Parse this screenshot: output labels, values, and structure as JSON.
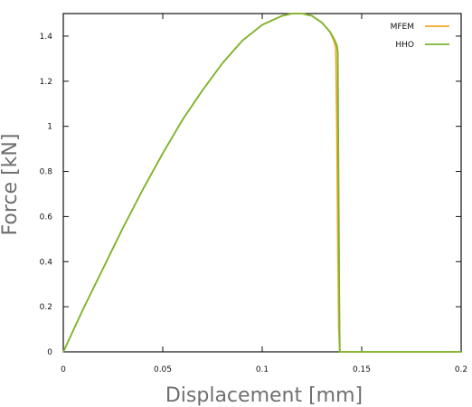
{
  "chart_data": {
    "type": "line",
    "xlabel": "Displacement [mm]",
    "ylabel": "Force [kN]",
    "xlim": [
      0,
      0.2
    ],
    "ylim": [
      0,
      1.5
    ],
    "xticks": [
      0,
      0.05,
      0.1,
      0.15,
      0.2
    ],
    "xtick_labels": [
      "0",
      "0.05",
      "0.1",
      "0.15",
      "0.2"
    ],
    "yticks": [
      0,
      0.2,
      0.4,
      0.6,
      0.8,
      1,
      1.2,
      1.4
    ],
    "ytick_labels": [
      "0",
      "0.2",
      "0.4",
      "0.6",
      "0.8",
      "1",
      "1.2",
      "1.4"
    ],
    "grid": false,
    "legend_position": "top-right",
    "series": [
      {
        "name": "MFEM",
        "color": "#f5a623",
        "x": [
          0,
          0.01,
          0.02,
          0.03,
          0.04,
          0.05,
          0.06,
          0.07,
          0.08,
          0.09,
          0.1,
          0.11,
          0.115,
          0.12,
          0.125,
          0.13,
          0.134,
          0.136,
          0.137,
          0.1375,
          0.138,
          0.1385,
          0.139,
          0.15,
          0.2
        ],
        "y": [
          0,
          0.19,
          0.37,
          0.55,
          0.72,
          0.88,
          1.03,
          1.16,
          1.28,
          1.38,
          1.45,
          1.49,
          1.5,
          1.5,
          1.49,
          1.46,
          1.42,
          1.38,
          1.35,
          1.0,
          0.5,
          0.1,
          0,
          0,
          0
        ]
      },
      {
        "name": "HHO",
        "color": "#7ab630",
        "x": [
          0,
          0.01,
          0.02,
          0.03,
          0.04,
          0.05,
          0.06,
          0.07,
          0.08,
          0.09,
          0.1,
          0.11,
          0.115,
          0.12,
          0.125,
          0.13,
          0.134,
          0.136,
          0.1375,
          0.138,
          0.1382,
          0.1385,
          0.1388,
          0.139,
          0.15,
          0.2
        ],
        "y": [
          0,
          0.19,
          0.37,
          0.55,
          0.72,
          0.88,
          1.03,
          1.16,
          1.28,
          1.38,
          1.45,
          1.49,
          1.5,
          1.5,
          1.49,
          1.46,
          1.42,
          1.39,
          1.36,
          1.33,
          1.0,
          0.6,
          0.2,
          0,
          0,
          0
        ]
      }
    ]
  }
}
